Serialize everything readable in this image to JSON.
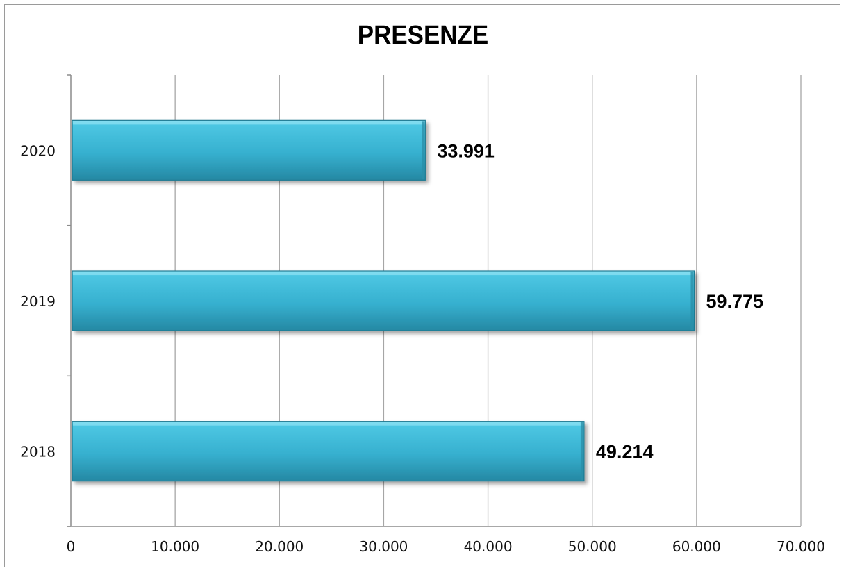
{
  "chart_data": {
    "type": "bar",
    "orientation": "horizontal",
    "title": "PRESENZE",
    "categories": [
      "2020",
      "2019",
      "2018"
    ],
    "values": [
      33991,
      59775,
      49214
    ],
    "value_labels": [
      "33.991",
      "59.775",
      "49.214"
    ],
    "xlim": [
      0,
      70000
    ],
    "x_ticks": [
      0,
      10000,
      20000,
      30000,
      40000,
      50000,
      60000,
      70000
    ],
    "x_tick_labels": [
      "0",
      "10.000",
      "20.000",
      "30.000",
      "40.000",
      "50.000",
      "60.000",
      "70.000"
    ],
    "xlabel": "",
    "ylabel": "",
    "grid": true,
    "legend": false,
    "colors": {
      "bar": "#3bb8d6",
      "bar_dark": "#2a8fa8",
      "bar_light": "#7fdcef",
      "grid": "#a6a6a6",
      "axis": "#8c8c8c"
    }
  }
}
